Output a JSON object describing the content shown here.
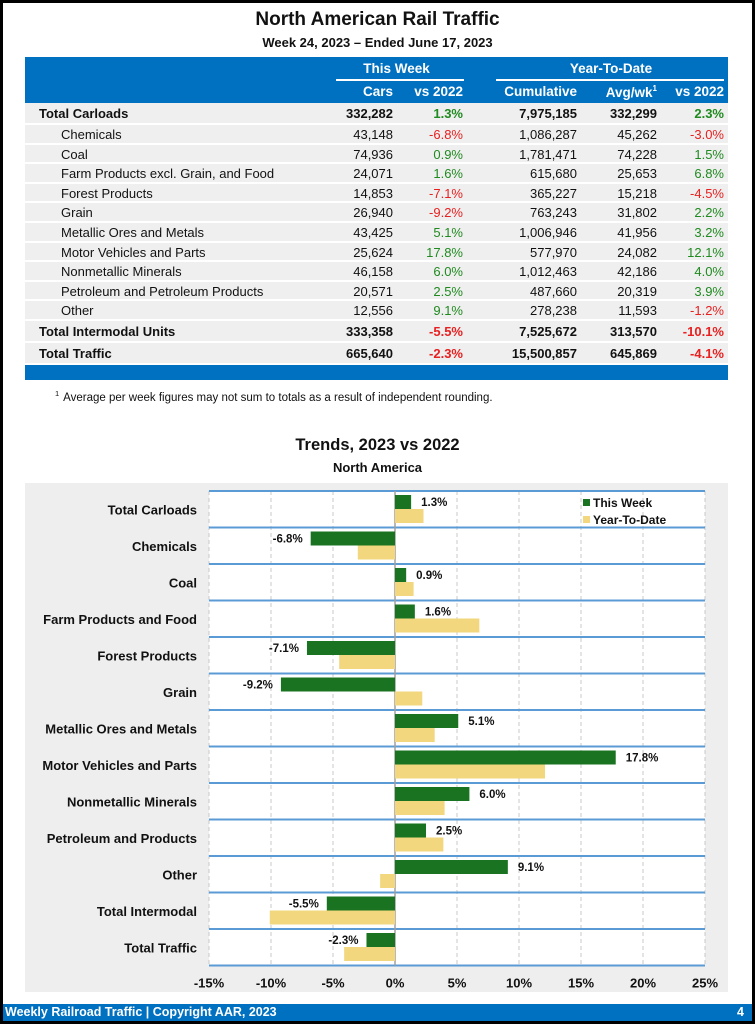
{
  "header": {
    "title": "North American Rail Traffic",
    "subtitle": "Week 24, 2023 – Ended June 17, 2023"
  },
  "table": {
    "groups": {
      "this_week": "This Week",
      "ytd": "Year-To-Date"
    },
    "columns": {
      "cars": "Cars",
      "vs2022_week": "vs 2022",
      "cumulative": "Cumulative",
      "avgwk": "Avg/wk",
      "avgwk_sup": "1",
      "vs2022_ytd": "vs 2022"
    },
    "rows": [
      {
        "label": "Total Carloads",
        "type": "bold",
        "cars": "332,282",
        "vs_week": "1.3%",
        "cumulative": "7,975,185",
        "avgwk": "332,299",
        "vs_ytd": "2.3%"
      },
      {
        "label": "Chemicals",
        "type": "sub",
        "cars": "43,148",
        "vs_week": "-6.8%",
        "cumulative": "1,086,287",
        "avgwk": "45,262",
        "vs_ytd": "-3.0%"
      },
      {
        "label": "Coal",
        "type": "sub",
        "cars": "74,936",
        "vs_week": "0.9%",
        "cumulative": "1,781,471",
        "avgwk": "74,228",
        "vs_ytd": "1.5%"
      },
      {
        "label": "Farm Products excl. Grain, and Food",
        "type": "sub",
        "cars": "24,071",
        "vs_week": "1.6%",
        "cumulative": "615,680",
        "avgwk": "25,653",
        "vs_ytd": "6.8%"
      },
      {
        "label": "Forest Products",
        "type": "sub",
        "cars": "14,853",
        "vs_week": "-7.1%",
        "cumulative": "365,227",
        "avgwk": "15,218",
        "vs_ytd": "-4.5%"
      },
      {
        "label": "Grain",
        "type": "sub",
        "cars": "26,940",
        "vs_week": "-9.2%",
        "cumulative": "763,243",
        "avgwk": "31,802",
        "vs_ytd": "2.2%"
      },
      {
        "label": "Metallic Ores and Metals",
        "type": "sub",
        "cars": "43,425",
        "vs_week": "5.1%",
        "cumulative": "1,006,946",
        "avgwk": "41,956",
        "vs_ytd": "3.2%"
      },
      {
        "label": "Motor Vehicles and Parts",
        "type": "sub",
        "cars": "25,624",
        "vs_week": "17.8%",
        "cumulative": "577,970",
        "avgwk": "24,082",
        "vs_ytd": "12.1%"
      },
      {
        "label": "Nonmetallic Minerals",
        "type": "sub",
        "cars": "46,158",
        "vs_week": "6.0%",
        "cumulative": "1,012,463",
        "avgwk": "42,186",
        "vs_ytd": "4.0%"
      },
      {
        "label": "Petroleum and Petroleum Products",
        "type": "sub",
        "cars": "20,571",
        "vs_week": "2.5%",
        "cumulative": "487,660",
        "avgwk": "20,319",
        "vs_ytd": "3.9%"
      },
      {
        "label": "Other",
        "type": "sub",
        "cars": "12,556",
        "vs_week": "9.1%",
        "cumulative": "278,238",
        "avgwk": "11,593",
        "vs_ytd": "-1.2%"
      },
      {
        "label": "Total Intermodal Units",
        "type": "bold",
        "cars": "333,358",
        "vs_week": "-5.5%",
        "cumulative": "7,525,672",
        "avgwk": "313,570",
        "vs_ytd": "-10.1%"
      },
      {
        "label": "Total Traffic",
        "type": "bold",
        "cars": "665,640",
        "vs_week": "-2.3%",
        "cumulative": "15,500,857",
        "avgwk": "645,869",
        "vs_ytd": "-4.1%"
      }
    ]
  },
  "footnote": {
    "marker": "1",
    "text": "Average per week figures may not sum to totals as a result of independent rounding."
  },
  "colors": {
    "brand_blue": "#0070c0",
    "positive": "#1f8a1f",
    "negative": "#e82020",
    "this_week_bar": "#1a7320",
    "ytd_bar": "#f2d77e",
    "band_line": "#5b9bd5"
  },
  "chart_data": {
    "type": "bar",
    "orientation": "horizontal",
    "title": "Trends, 2023 vs 2022",
    "subtitle": "North America",
    "xlabel": "",
    "ylabel": "",
    "xlim": [
      -15,
      25
    ],
    "x_ticks": [
      -15,
      -10,
      -5,
      0,
      5,
      10,
      15,
      20,
      25
    ],
    "x_tick_labels": [
      "-15%",
      "-10%",
      "-5%",
      "0%",
      "5%",
      "10%",
      "15%",
      "20%",
      "25%"
    ],
    "grid": "vertical-dashed",
    "legend": "top-right",
    "categories": [
      "Total Carloads",
      "Chemicals",
      "Coal",
      "Farm Products and Food",
      "Forest Products",
      "Grain",
      "Metallic Ores and Metals",
      "Motor Vehicles and Parts",
      "Nonmetallic Minerals",
      "Petroleum and Products",
      "Other",
      "Total Intermodal",
      "Total Traffic"
    ],
    "series": [
      {
        "name": "This Week",
        "values": [
          1.3,
          -6.8,
          0.9,
          1.6,
          -7.1,
          -9.2,
          5.1,
          17.8,
          6.0,
          2.5,
          9.1,
          -5.5,
          -2.3
        ],
        "data_labels": [
          "1.3%",
          "-6.8%",
          "0.9%",
          "1.6%",
          "-7.1%",
          "-9.2%",
          "5.1%",
          "17.8%",
          "6.0%",
          "2.5%",
          "9.1%",
          "-5.5%",
          "-2.3%"
        ]
      },
      {
        "name": "Year-To-Date",
        "values": [
          2.3,
          -3.0,
          1.5,
          6.8,
          -4.5,
          2.2,
          3.2,
          12.1,
          4.0,
          3.9,
          -1.2,
          -10.1,
          -4.1
        ]
      }
    ]
  },
  "footer": {
    "text": "Weekly Railroad Traffic | Copyright AAR, 2023",
    "page": "4"
  }
}
